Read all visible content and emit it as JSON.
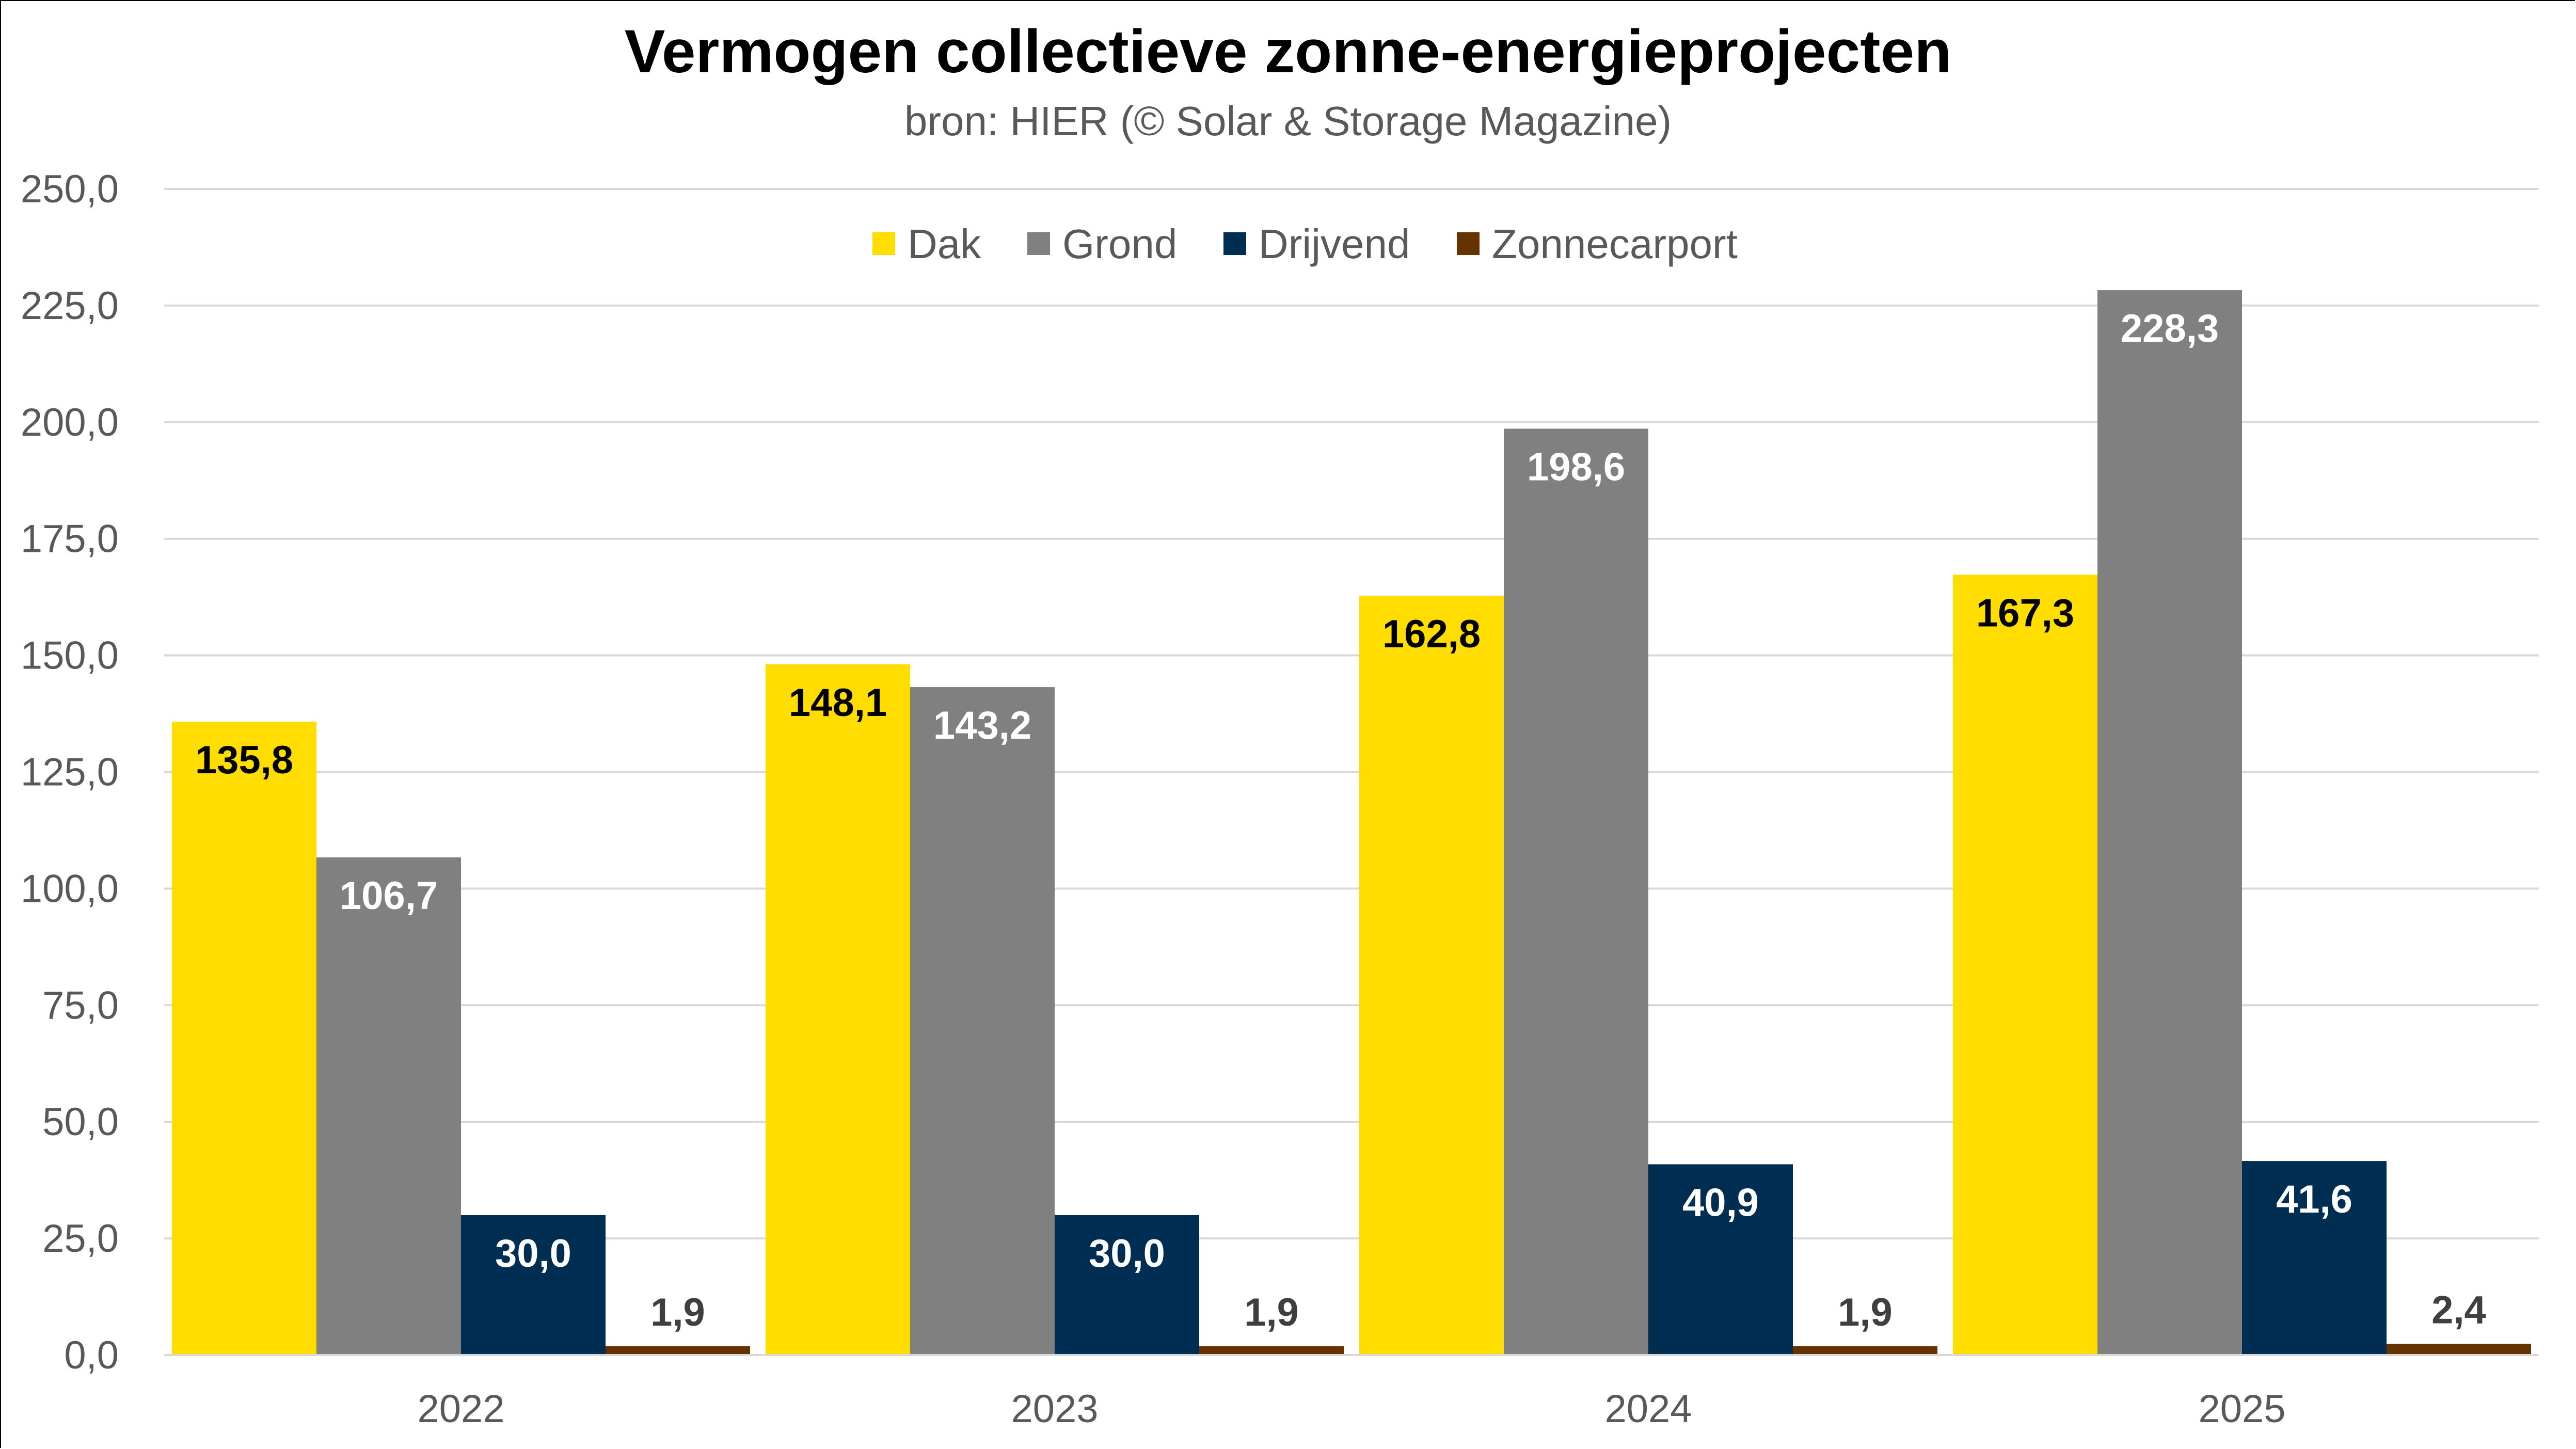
{
  "chart_data": {
    "type": "bar",
    "title": "Vermogen collectieve zonne-energieprojecten",
    "subtitle": "bron: HIER (© Solar & Storage Magazine)",
    "xlabel": "",
    "ylabel": "",
    "categories": [
      "2022",
      "2023",
      "2024",
      "2025"
    ],
    "ylim": [
      0,
      250
    ],
    "yticks": [
      0,
      25,
      50,
      75,
      100,
      125,
      150,
      175,
      200,
      225,
      250
    ],
    "ytick_labels": [
      "0,0",
      "25,0",
      "50,0",
      "75,0",
      "100,0",
      "125,0",
      "150,0",
      "175,0",
      "200,0",
      "225,0",
      "250,0"
    ],
    "grid": true,
    "legend_position": "top-center",
    "series": [
      {
        "name": "Dak",
        "color": "#FFDD00",
        "label_color": "#000000",
        "values": [
          135.8,
          148.1,
          162.8,
          167.3
        ],
        "labels": [
          "135,8",
          "148,1",
          "162,8",
          "167,3"
        ],
        "label_position": "inside-top"
      },
      {
        "name": "Grond",
        "color": "#808080",
        "label_color": "#FFFFFF",
        "values": [
          106.7,
          143.2,
          198.6,
          228.3
        ],
        "labels": [
          "106,7",
          "143,2",
          "198,6",
          "228,3"
        ],
        "label_position": "inside-top"
      },
      {
        "name": "Drijvend",
        "color": "#002D52",
        "label_color": "#FFFFFF",
        "values": [
          30.0,
          30.0,
          40.9,
          41.6
        ],
        "labels": [
          "30,0",
          "30,0",
          "40,9",
          "41,6"
        ],
        "label_position": "inside-top"
      },
      {
        "name": "Zonnecarport",
        "color": "#663300",
        "label_color": "#3F3F3F",
        "values": [
          1.9,
          1.9,
          1.9,
          2.4
        ],
        "labels": [
          "1,9",
          "1,9",
          "1,9",
          "2,4"
        ],
        "label_position": "outside-top"
      }
    ]
  }
}
